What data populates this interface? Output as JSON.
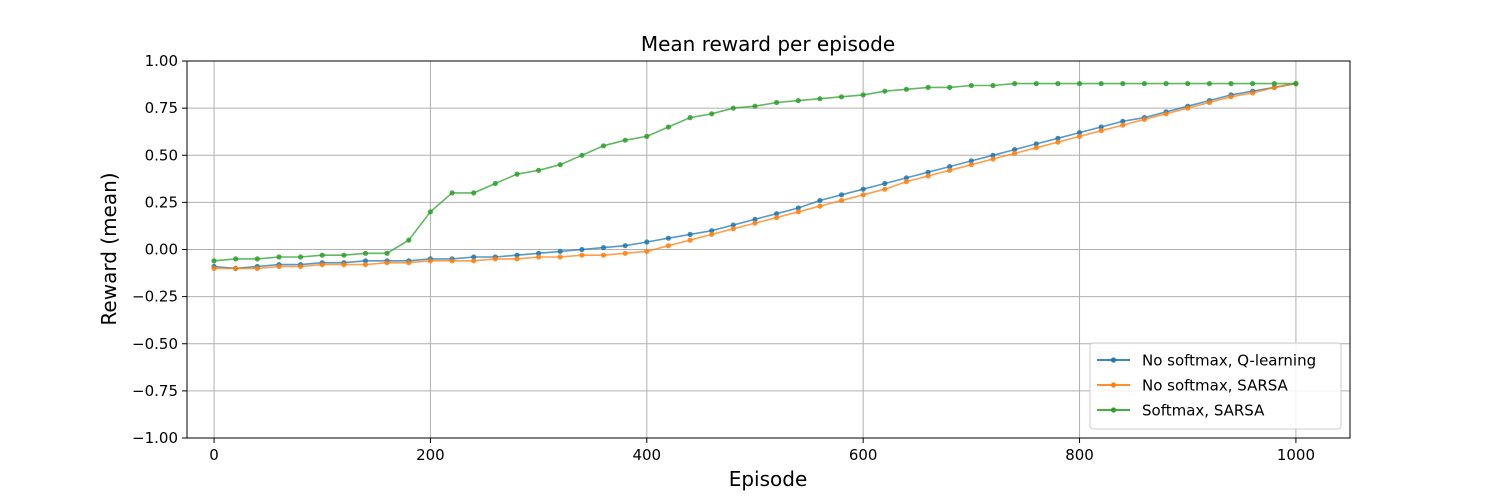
{
  "chart_data": {
    "type": "line",
    "title": "Mean reward per episode",
    "xlabel": "Episode",
    "ylabel": "Reward (mean)",
    "xlim": [
      -25,
      1050
    ],
    "ylim": [
      -1.0,
      1.0
    ],
    "xticks": [
      0,
      200,
      400,
      600,
      800,
      1000
    ],
    "xtick_labels": [
      "0",
      "200",
      "400",
      "600",
      "800",
      "1000"
    ],
    "yticks": [
      -1.0,
      -0.75,
      -0.5,
      -0.25,
      0.0,
      0.25,
      0.5,
      0.75,
      1.0
    ],
    "ytick_labels": [
      "−1.00",
      "−0.75",
      "−0.50",
      "−0.25",
      "0.00",
      "0.25",
      "0.50",
      "0.75",
      "1.00"
    ],
    "grid": true,
    "legend_position": "lower-right",
    "marker": "circle",
    "series": [
      {
        "name": "No softmax, Q-learning",
        "color": "#1f77b4",
        "x": [
          0,
          20,
          40,
          60,
          80,
          100,
          120,
          140,
          160,
          180,
          200,
          220,
          240,
          260,
          280,
          300,
          320,
          340,
          360,
          380,
          400,
          420,
          440,
          460,
          480,
          500,
          520,
          540,
          560,
          580,
          600,
          620,
          640,
          660,
          680,
          700,
          720,
          740,
          760,
          780,
          800,
          820,
          840,
          860,
          880,
          900,
          920,
          940,
          960,
          980,
          1000
        ],
        "y": [
          -0.09,
          -0.1,
          -0.09,
          -0.08,
          -0.08,
          -0.07,
          -0.07,
          -0.06,
          -0.06,
          -0.06,
          -0.05,
          -0.05,
          -0.04,
          -0.04,
          -0.03,
          -0.02,
          -0.01,
          0.0,
          0.01,
          0.02,
          0.04,
          0.06,
          0.08,
          0.1,
          0.13,
          0.16,
          0.19,
          0.22,
          0.26,
          0.29,
          0.32,
          0.35,
          0.38,
          0.41,
          0.44,
          0.47,
          0.5,
          0.53,
          0.56,
          0.59,
          0.62,
          0.65,
          0.68,
          0.7,
          0.73,
          0.76,
          0.79,
          0.82,
          0.84,
          0.86,
          0.88
        ]
      },
      {
        "name": "No softmax, SARSA",
        "color": "#ff7f0e",
        "x": [
          0,
          20,
          40,
          60,
          80,
          100,
          120,
          140,
          160,
          180,
          200,
          220,
          240,
          260,
          280,
          300,
          320,
          340,
          360,
          380,
          400,
          420,
          440,
          460,
          480,
          500,
          520,
          540,
          560,
          580,
          600,
          620,
          640,
          660,
          680,
          700,
          720,
          740,
          760,
          780,
          800,
          820,
          840,
          860,
          880,
          900,
          920,
          940,
          960,
          980,
          1000
        ],
        "y": [
          -0.1,
          -0.1,
          -0.1,
          -0.09,
          -0.09,
          -0.08,
          -0.08,
          -0.08,
          -0.07,
          -0.07,
          -0.06,
          -0.06,
          -0.06,
          -0.05,
          -0.05,
          -0.04,
          -0.04,
          -0.03,
          -0.03,
          -0.02,
          -0.01,
          0.02,
          0.05,
          0.08,
          0.11,
          0.14,
          0.17,
          0.2,
          0.23,
          0.26,
          0.29,
          0.32,
          0.36,
          0.39,
          0.42,
          0.45,
          0.48,
          0.51,
          0.54,
          0.57,
          0.6,
          0.63,
          0.66,
          0.69,
          0.72,
          0.75,
          0.78,
          0.81,
          0.83,
          0.86,
          0.88
        ]
      },
      {
        "name": "Softmax, SARSA",
        "color": "#2ca02c",
        "x": [
          0,
          20,
          40,
          60,
          80,
          100,
          120,
          140,
          160,
          180,
          200,
          220,
          240,
          260,
          280,
          300,
          320,
          340,
          360,
          380,
          400,
          420,
          440,
          460,
          480,
          500,
          520,
          540,
          560,
          580,
          600,
          620,
          640,
          660,
          680,
          700,
          720,
          740,
          760,
          780,
          800,
          820,
          840,
          860,
          880,
          900,
          920,
          940,
          960,
          980,
          1000
        ],
        "y": [
          -0.06,
          -0.05,
          -0.05,
          -0.04,
          -0.04,
          -0.03,
          -0.03,
          -0.02,
          -0.02,
          0.05,
          0.2,
          0.3,
          0.3,
          0.35,
          0.4,
          0.42,
          0.45,
          0.5,
          0.55,
          0.58,
          0.6,
          0.65,
          0.7,
          0.72,
          0.75,
          0.76,
          0.78,
          0.79,
          0.8,
          0.81,
          0.82,
          0.84,
          0.85,
          0.86,
          0.86,
          0.87,
          0.87,
          0.88,
          0.88,
          0.88,
          0.88,
          0.88,
          0.88,
          0.88,
          0.88,
          0.88,
          0.88,
          0.88,
          0.88,
          0.88,
          0.88
        ]
      }
    ]
  }
}
